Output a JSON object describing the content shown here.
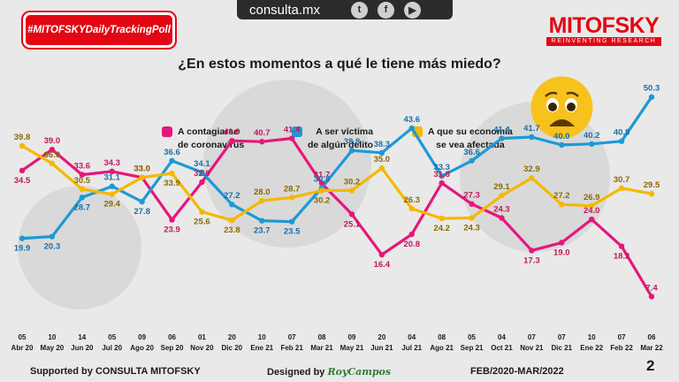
{
  "header": {
    "hashtag": "#MITOFSKYDailyTrackingPoll",
    "site": "consulta.mx",
    "social": [
      {
        "icon": "twitter-icon",
        "glyph": "t"
      },
      {
        "icon": "facebook-icon",
        "glyph": "f"
      },
      {
        "icon": "youtube-icon",
        "glyph": "▶"
      }
    ],
    "logo_name": "MITOFSKY",
    "logo_tagline": "REINVENTING RESEARCH"
  },
  "question": "¿En estos momentos a qué le tiene más miedo?",
  "legend": [
    {
      "color": "#e6177a",
      "lines": [
        "A contagiarse",
        "de coronavirus"
      ]
    },
    {
      "color": "#1b9ad6",
      "lines": [
        "A ser víctima",
        "de algún delito"
      ]
    },
    {
      "color": "#f5b800",
      "lines": [
        "A que su economía",
        "se vea afectada"
      ]
    }
  ],
  "footer": {
    "supported": "Supported by   CONSULTA   MITOFSKY",
    "designed": "Designed by",
    "designer": "RoyCampos",
    "period": "FEB/2020-MAR/2022",
    "page": "2"
  },
  "colors": {
    "accent": "#e30613",
    "pink": "#e6177a",
    "blue": "#1b9ad6",
    "yellow": "#f5b800"
  },
  "chart_data": {
    "type": "line",
    "x": [
      [
        "05",
        "Abr 20"
      ],
      [
        "10",
        "May 20"
      ],
      [
        "14",
        "Jun 20"
      ],
      [
        "05",
        "Jul 20"
      ],
      [
        "09",
        "Ago 20"
      ],
      [
        "06",
        "Sep 20"
      ],
      [
        "01",
        "Nov 20"
      ],
      [
        "20",
        "Dic 20"
      ],
      [
        "10",
        "Ene 21"
      ],
      [
        "07",
        "Feb 21"
      ],
      [
        "08",
        "Mar 21"
      ],
      [
        "09",
        "May 21"
      ],
      [
        "20",
        "Jun 21"
      ],
      [
        "04",
        "Jul 21"
      ],
      [
        "08",
        "Ago 21"
      ],
      [
        "05",
        "Sep 21"
      ],
      [
        "04",
        "Oct 21"
      ],
      [
        "07",
        "Nov 21"
      ],
      [
        "07",
        "Dic 21"
      ],
      [
        "10",
        "Ene 22"
      ],
      [
        "07",
        "Feb 22"
      ],
      [
        "06",
        "Mar 22"
      ]
    ],
    "series": [
      {
        "name": "A contagiarse de coronavirus",
        "color": "#e6177a",
        "labelColor": "#c2185b",
        "values": [
          34.5,
          39.0,
          33.6,
          34.3,
          33.0,
          23.9,
          32.0,
          40.9,
          40.7,
          41.4,
          31.7,
          25.1,
          16.4,
          20.8,
          31.8,
          27.3,
          24.3,
          17.3,
          19.0,
          24.0,
          18.2,
          7.4
        ],
        "labelPos": [
          "b",
          "t",
          "t",
          "t",
          "t",
          "b",
          "t",
          "t",
          "t",
          "t",
          "t",
          "b",
          "b",
          "b",
          "t",
          "t",
          "t",
          "b",
          "b",
          "t",
          "b",
          "t"
        ]
      },
      {
        "name": "A ser víctima de algún delito",
        "color": "#1b9ad6",
        "labelColor": "#1a6fa8",
        "values": [
          19.9,
          20.3,
          28.7,
          31.1,
          27.8,
          36.6,
          34.1,
          27.2,
          23.7,
          23.5,
          30.8,
          38.8,
          38.3,
          43.6,
          33.3,
          36.6,
          41.4,
          41.7,
          40.0,
          40.2,
          40.8,
          50.3
        ],
        "labelPos": [
          "b",
          "b",
          "b",
          "t",
          "b",
          "t",
          "t",
          "t",
          "b",
          "b",
          "t",
          "t",
          "t",
          "t",
          "t",
          "t",
          "t",
          "t",
          "t",
          "t",
          "t",
          "t"
        ]
      },
      {
        "name": "A que su economía se vea afectada",
        "color": "#f5b800",
        "labelColor": "#8a6a00",
        "values": [
          39.8,
          36.0,
          30.5,
          29.4,
          33.0,
          33.9,
          25.6,
          23.8,
          28.0,
          28.7,
          30.2,
          30.2,
          35.0,
          26.3,
          24.2,
          24.3,
          29.1,
          32.9,
          27.2,
          26.9,
          30.7,
          29.5
        ],
        "labelPos": [
          "t",
          "t",
          "t",
          "b",
          "t",
          "b",
          "b",
          "b",
          "t",
          "t",
          "b",
          "t",
          "t",
          "t",
          "b",
          "b",
          "t",
          "t",
          "t",
          "t",
          "t",
          "t"
        ]
      }
    ],
    "ylim": [
      0,
      55
    ],
    "grid": false
  }
}
